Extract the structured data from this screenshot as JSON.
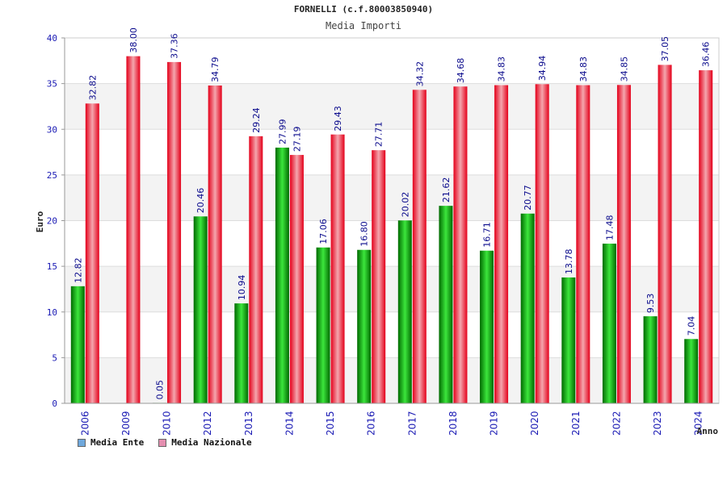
{
  "header": {
    "title": "FORNELLI (c.f.80003850940)",
    "subtitle": "Media Importi"
  },
  "legend": {
    "series1_label": "Media Ente",
    "series2_label": "Media Nazionale",
    "series1_color": "#6fa8dc",
    "series2_color": "#e58fb0"
  },
  "chart_data": {
    "type": "bar",
    "title": "FORNELLI (c.f.80003850940)",
    "subtitle": "Media Importi",
    "xlabel": "Anno",
    "ylabel": "Euro",
    "ylim": [
      0,
      40
    ],
    "yticks": [
      0,
      5,
      10,
      15,
      20,
      25,
      30,
      35,
      40
    ],
    "grid": true,
    "legend_position": "bottom-left",
    "categories": [
      "2006",
      "2009",
      "2010",
      "2012",
      "2013",
      "2014",
      "2015",
      "2016",
      "2017",
      "2018",
      "2019",
      "2020",
      "2021",
      "2022",
      "2023",
      "2024"
    ],
    "series": [
      {
        "name": "Media Ente",
        "color": "#00b400",
        "values": [
          12.82,
          null,
          0.05,
          20.46,
          10.94,
          27.99,
          17.06,
          16.8,
          20.02,
          21.62,
          16.71,
          20.77,
          13.78,
          17.48,
          9.53,
          7.04
        ],
        "labels": [
          "12.82",
          "",
          "0.05",
          "20.46",
          "10.94",
          "27.99",
          "17.06",
          "16.80",
          "20.02",
          "21.62",
          "16.71",
          "20.77",
          "13.78",
          "17.48",
          "9.53",
          "7.04"
        ]
      },
      {
        "name": "Media Nazionale",
        "color": "#e8101e",
        "values": [
          32.82,
          38.0,
          37.36,
          34.79,
          29.24,
          27.19,
          29.43,
          27.71,
          34.32,
          34.68,
          34.83,
          34.94,
          34.83,
          34.85,
          37.05,
          36.46
        ],
        "labels": [
          "32.82",
          "38.00",
          "37.36",
          "34.79",
          "29.24",
          "27.19",
          "29.43",
          "27.71",
          "34.32",
          "34.68",
          "34.83",
          "34.94",
          "34.83",
          "34.85",
          "37.05",
          "36.46"
        ]
      }
    ]
  }
}
